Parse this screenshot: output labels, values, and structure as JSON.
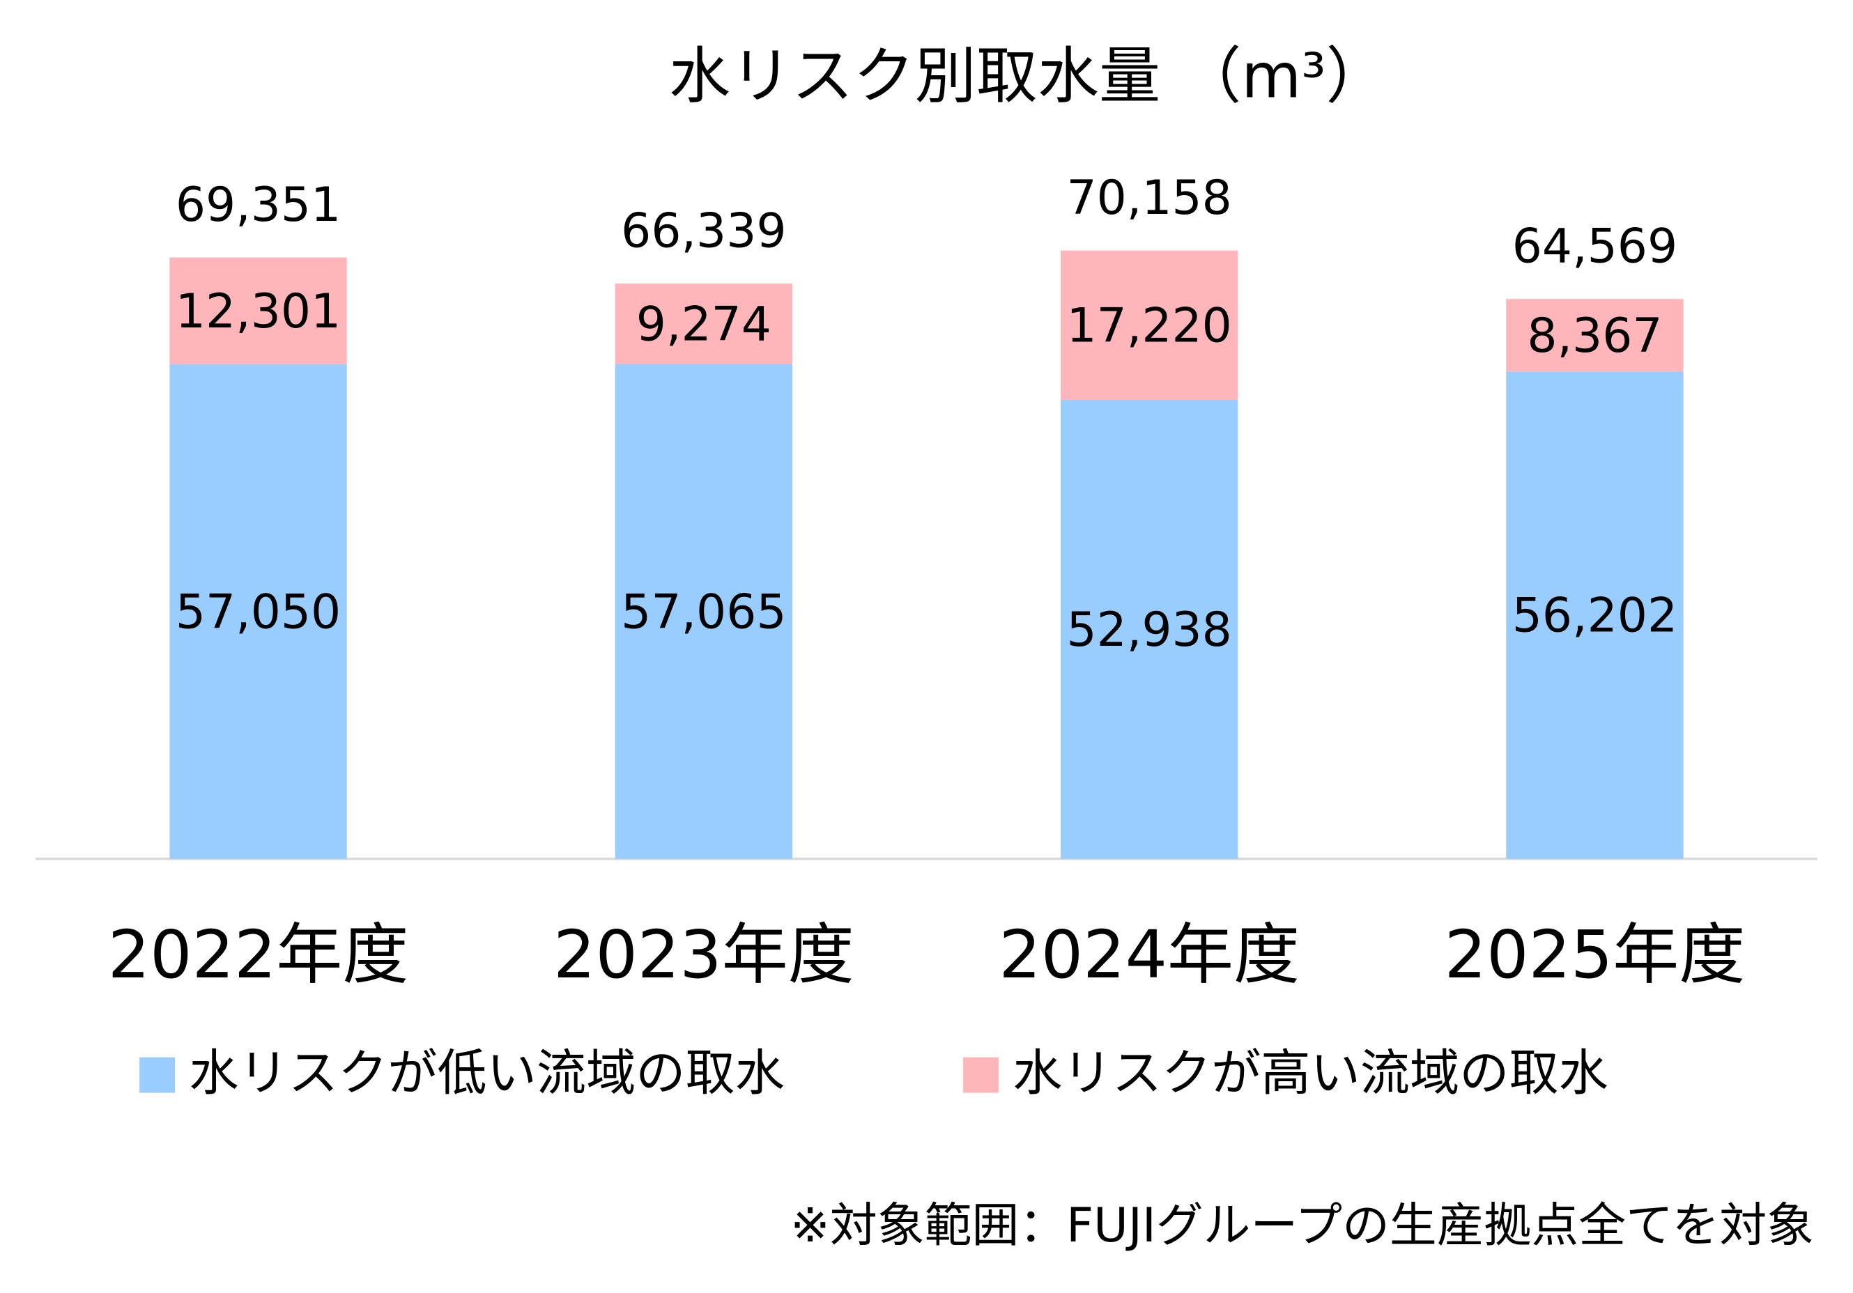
{
  "chart_data": {
    "type": "stacked-bar",
    "title": "水リスク別取水量 （m³）",
    "categories": [
      "2022年度",
      "2023年度",
      "2024年度",
      "2025年度"
    ],
    "series": [
      {
        "name": "水リスクが低い流域の取水",
        "color": "#99ccff",
        "values": [
          57050,
          57065,
          52938,
          56202
        ],
        "value_labels": [
          "57,050",
          "57,065",
          "52,938",
          "56,202"
        ]
      },
      {
        "name": "水リスクが高い流域の取水",
        "color": "#ffb6ba",
        "values": [
          12301,
          9274,
          17220,
          8367
        ],
        "value_labels": [
          "12,301",
          "9,274",
          "17,220",
          "8,367"
        ]
      }
    ],
    "totals": {
      "values": [
        69351,
        66339,
        70158,
        64569
      ],
      "value_labels": [
        "69,351",
        "66,339",
        "70,158",
        "64,569"
      ]
    },
    "legend": "bottom",
    "note": "※対象範囲：FUJIグループの生産拠点全てを対象"
  }
}
